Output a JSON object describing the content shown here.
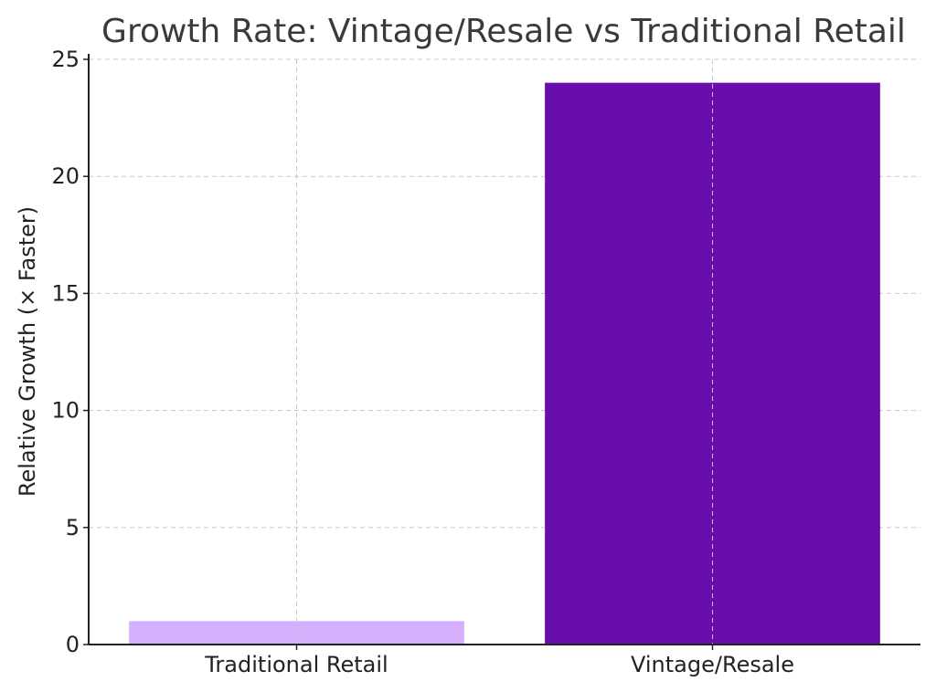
{
  "chart_data": {
    "type": "bar",
    "title": "Growth Rate: Vintage/Resale vs Traditional Retail",
    "xlabel": "",
    "ylabel": "Relative Growth (× Faster)",
    "categories": [
      "Traditional Retail",
      "Vintage/Resale"
    ],
    "values": [
      1,
      24
    ],
    "colors": [
      "#d4b0ff",
      "#6a0dad"
    ],
    "ylim": [
      0,
      25
    ],
    "yticks": [
      0,
      5,
      10,
      15,
      20,
      25
    ],
    "grid": true
  }
}
